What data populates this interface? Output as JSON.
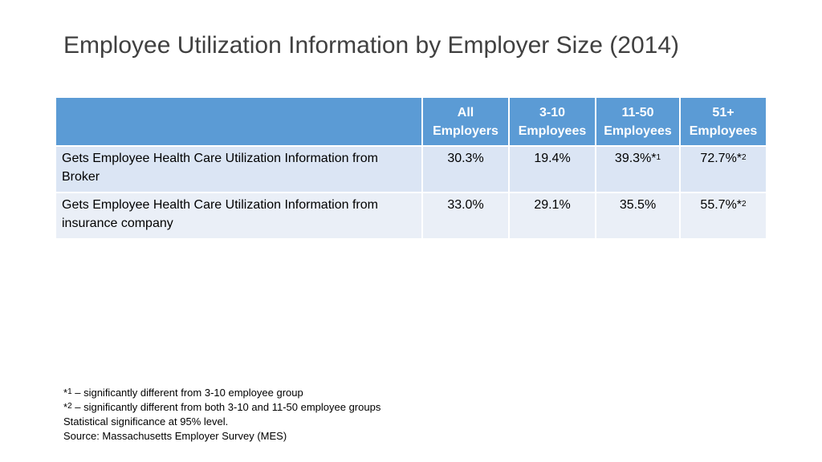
{
  "title": "Employee Utilization Information by Employer Size (2014)",
  "table": {
    "headers": [
      "",
      "All Employers",
      "3-10 Employees",
      "11-50 Employees",
      "51+ Employees"
    ],
    "header_lines": [
      [
        "",
        ""
      ],
      [
        "All",
        "Employers"
      ],
      [
        "3-10",
        "Employees"
      ],
      [
        "11-50",
        "Employees"
      ],
      [
        "51+",
        "Employees"
      ]
    ],
    "rows": [
      {
        "label": "Gets Employee Health Care Utilization Information from Broker",
        "cells": [
          {
            "value": "30.3%",
            "mark": ""
          },
          {
            "value": "19.4%",
            "mark": ""
          },
          {
            "value": "39.3%*",
            "mark": "1"
          },
          {
            "value": "72.7%*",
            "mark": "2"
          }
        ]
      },
      {
        "label": "Gets Employee Health Care Utilization Information from insurance company",
        "cells": [
          {
            "value": "33.0%",
            "mark": ""
          },
          {
            "value": "29.1%",
            "mark": ""
          },
          {
            "value": "35.5%",
            "mark": ""
          },
          {
            "value": "55.7%*",
            "mark": "2"
          }
        ]
      }
    ]
  },
  "notes": [
    {
      "prefix": "*",
      "mark": "1",
      "text": " – significantly different from 3-10 employee group"
    },
    {
      "prefix": "*",
      "mark": "2",
      "text": " – significantly different from both 3-10 and 11-50 employee groups"
    },
    {
      "prefix": "",
      "mark": "",
      "text": "Statistical significance at 95% level."
    },
    {
      "prefix": "",
      "mark": "",
      "text": "Source: Massachusetts Employer Survey (MES)"
    }
  ],
  "colors": {
    "header_bg": "#5b9bd5",
    "row_bg": "#dbe5f4",
    "row_alt_bg": "#eaeff7",
    "title_color": "#404040"
  }
}
